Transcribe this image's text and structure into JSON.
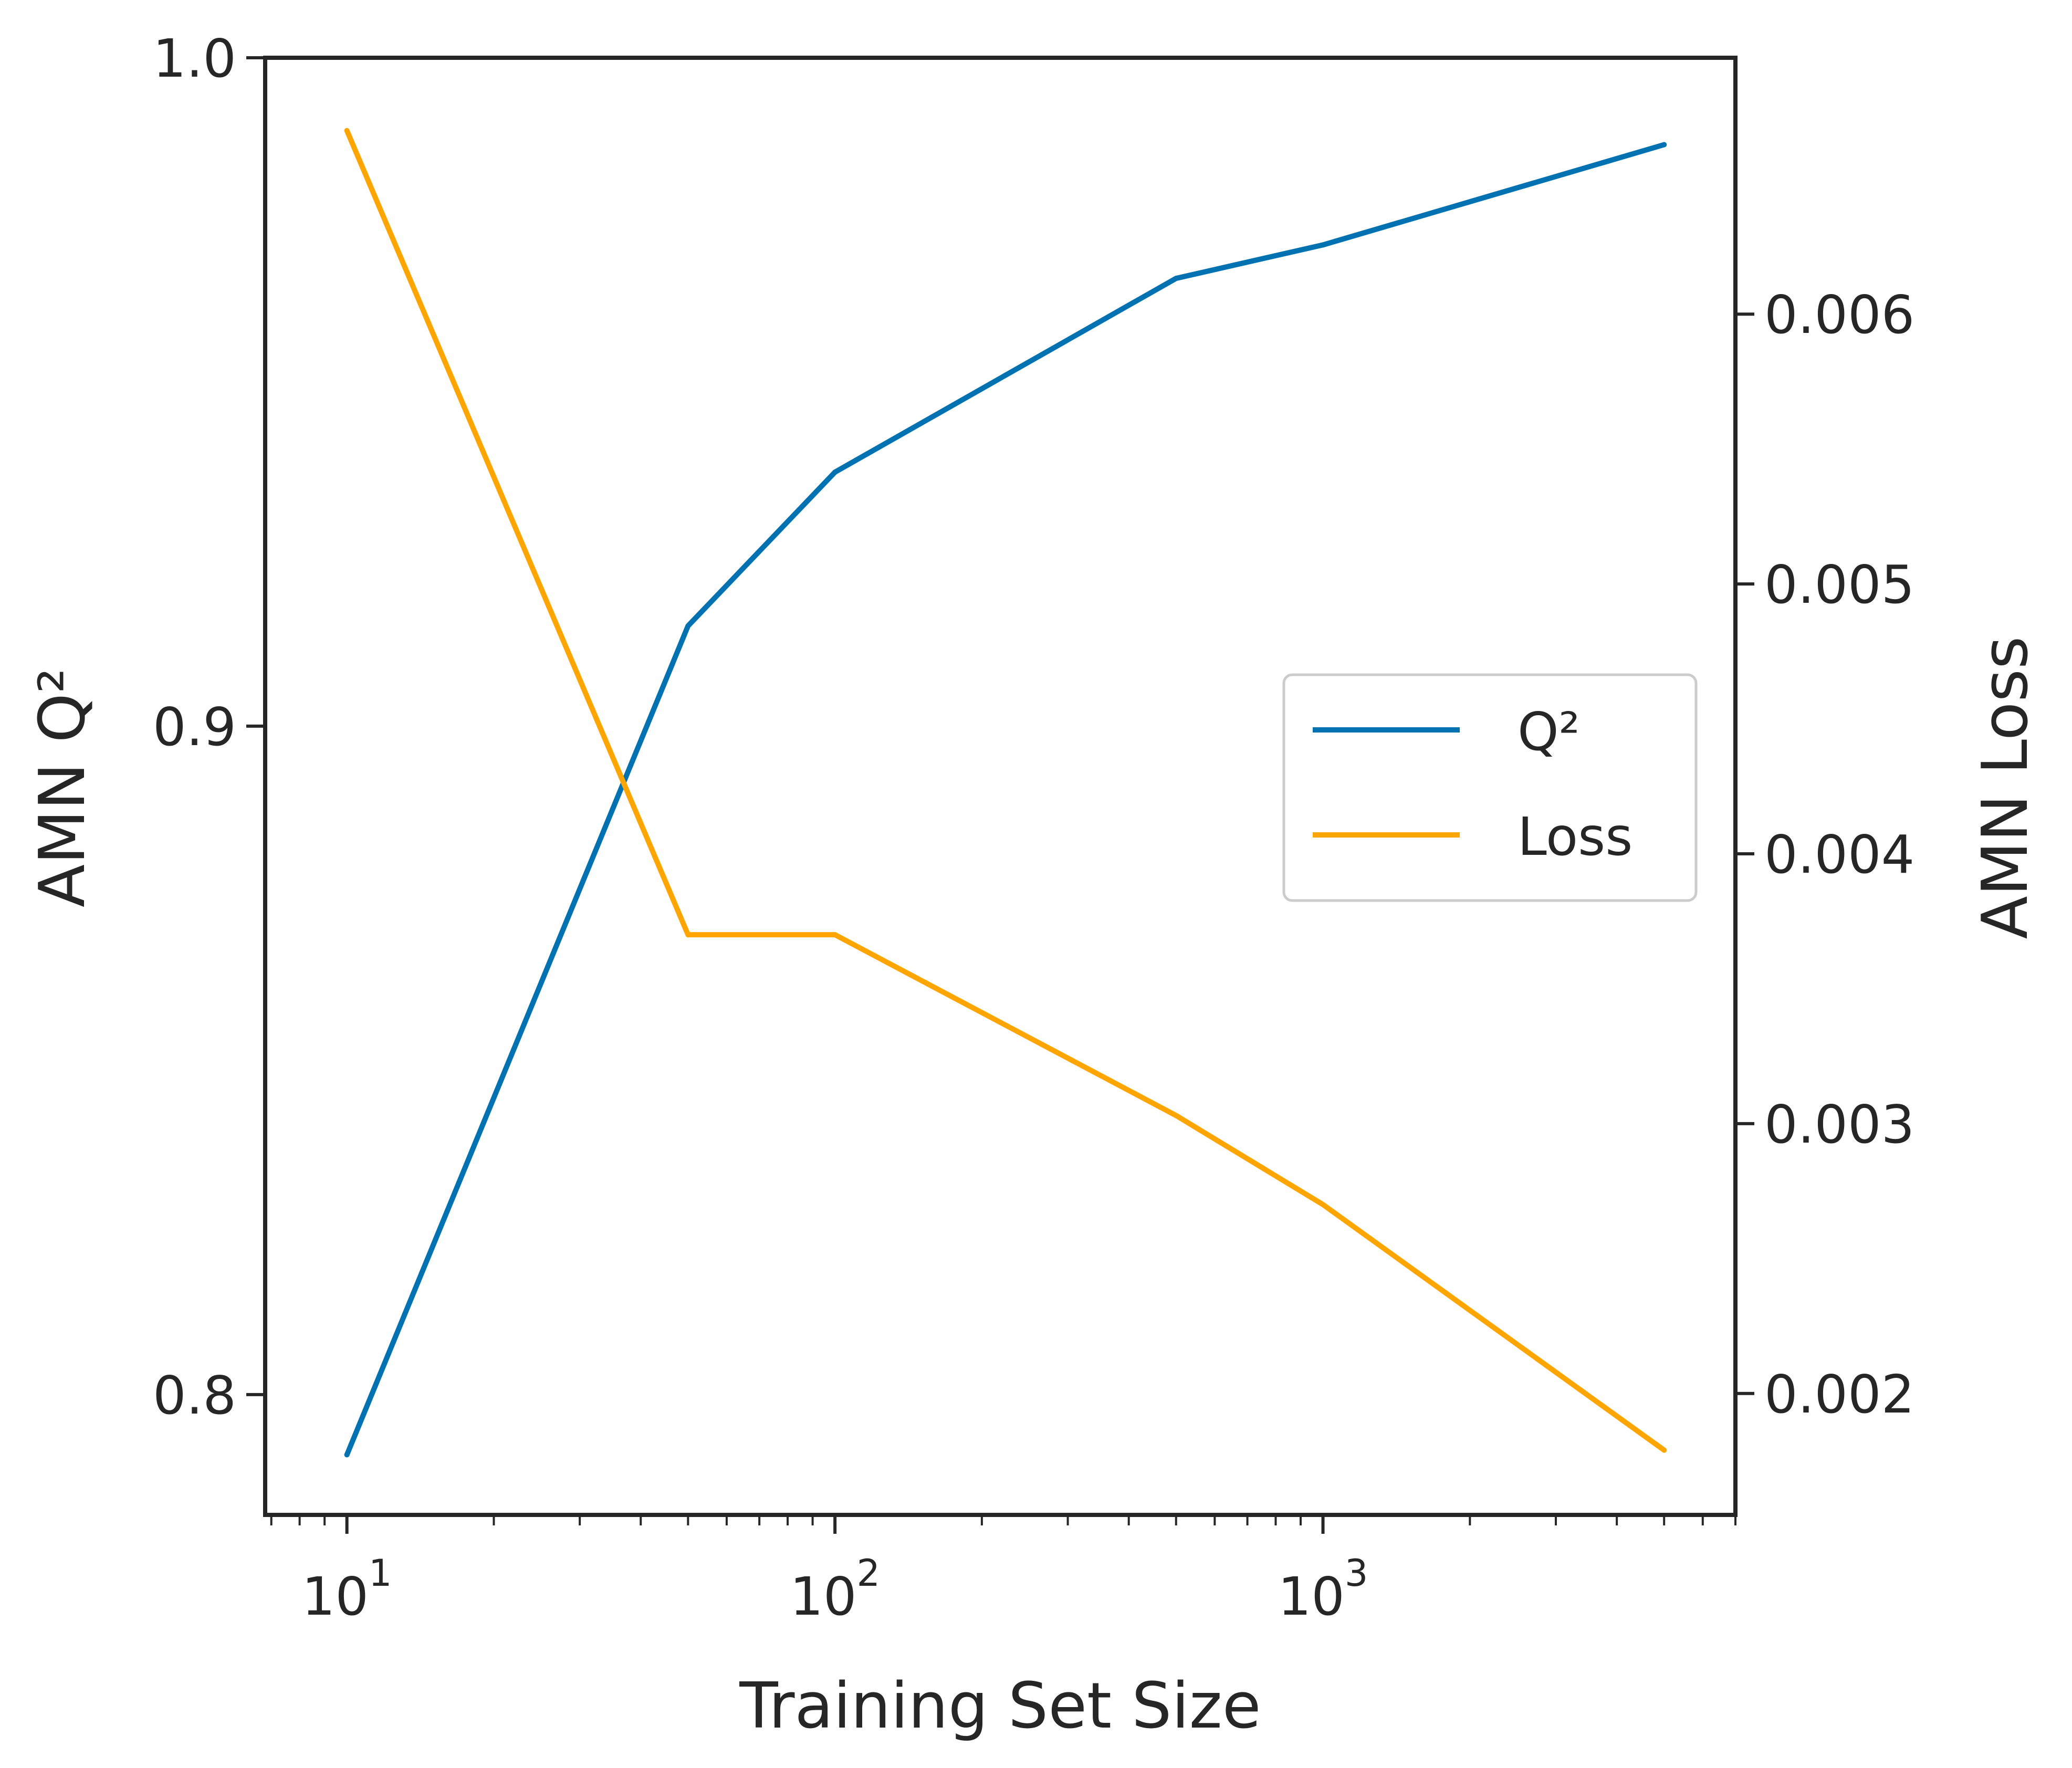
{
  "chart_data": {
    "type": "line",
    "x_scale": "log",
    "xlabel": "Training Set Size",
    "ylabel_left": "AMN Q²",
    "ylabel_right": "AMN Loss",
    "xlim": [
      6.8,
      7000
    ],
    "ylim_left": [
      0.782,
      1.0
    ],
    "ylim_right": [
      0.00155,
      0.00695
    ],
    "x_ticks": [
      {
        "value": 10,
        "base": "10",
        "exp": "1"
      },
      {
        "value": 100,
        "base": "10",
        "exp": "2"
      },
      {
        "value": 1000,
        "base": "10",
        "exp": "3"
      }
    ],
    "y_ticks_left": [
      {
        "value": 0.8,
        "label": "0.8"
      },
      {
        "value": 0.9,
        "label": "0.9"
      },
      {
        "value": 1.0,
        "label": "1.0"
      }
    ],
    "y_ticks_right": [
      {
        "value": 0.002,
        "label": "0.002"
      },
      {
        "value": 0.003,
        "label": "0.003"
      },
      {
        "value": 0.004,
        "label": "0.004"
      },
      {
        "value": 0.005,
        "label": "0.005"
      },
      {
        "value": 0.006,
        "label": "0.006"
      }
    ],
    "x": [
      10,
      50,
      100,
      500,
      1000,
      5000
    ],
    "series": [
      {
        "name": "Q²",
        "axis": "left",
        "color": "#0072B2",
        "values": [
          0.791,
          0.915,
          0.938,
          0.967,
          0.972,
          0.987
        ]
      },
      {
        "name": "Loss",
        "axis": "right",
        "color": "#FFA500",
        "values": [
          0.00668,
          0.0037,
          0.0037,
          0.00303,
          0.0027,
          0.00179
        ]
      }
    ],
    "legend_position": "center-right",
    "grid": false
  }
}
